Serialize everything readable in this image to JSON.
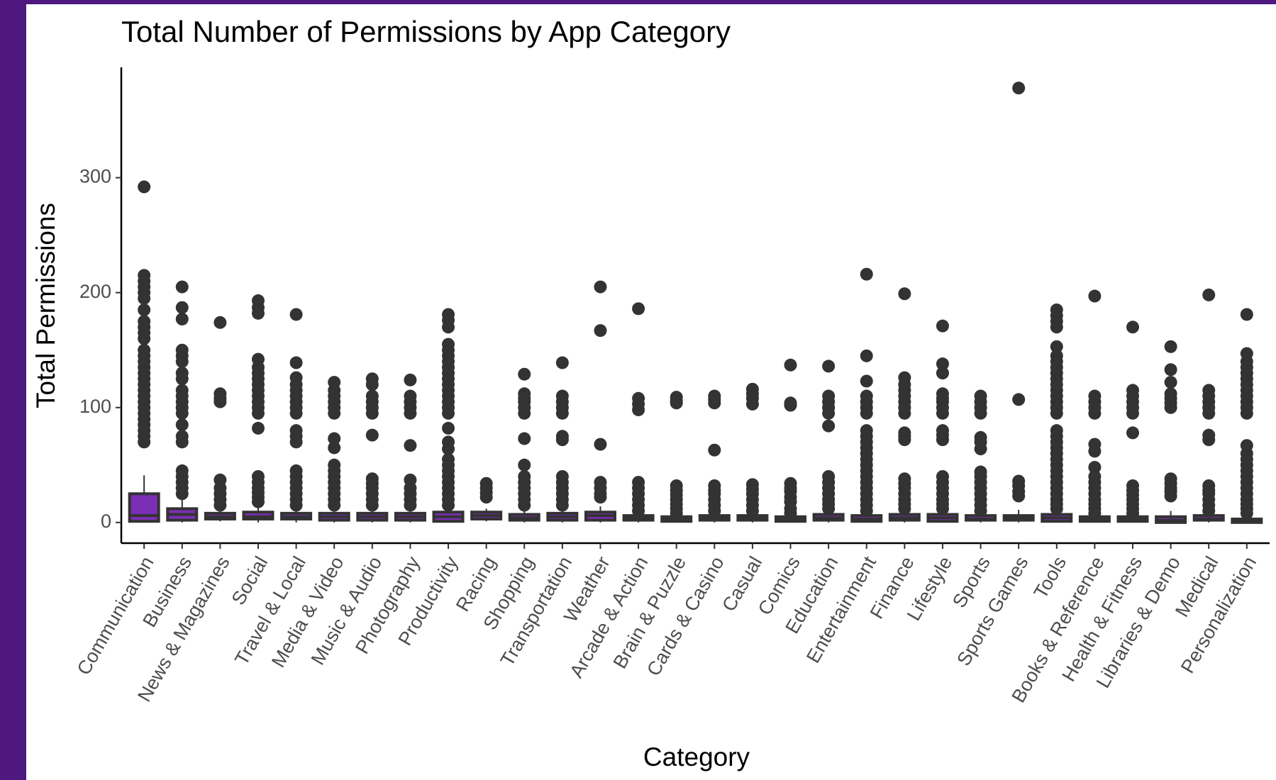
{
  "chart_data": {
    "type": "box",
    "title": "Total Number of Permissions by App Category",
    "x_label": "Category",
    "y_label": "Total Permissions",
    "categories": [
      "Communication",
      "Business",
      "News & Magazines",
      "Social",
      "Travel & Local",
      "Media & Video",
      "Music & Audio",
      "Photography",
      "Productivity",
      "Racing",
      "Shopping",
      "Transportation",
      "Weather",
      "Arcade & Action",
      "Brain & Puzzle",
      "Cards & Casino",
      "Casual",
      "Comics",
      "Education",
      "Entertainment",
      "Finance",
      "Lifestyle",
      "Sports",
      "Sports Games",
      "Tools",
      "Books & Reference",
      "Health & Fitness",
      "Libraries & Demo",
      "Medical",
      "Personalization"
    ],
    "whisker_low": [
      0,
      0,
      1,
      0,
      0,
      0,
      0,
      0,
      0,
      1,
      0,
      0,
      0,
      0,
      0,
      0,
      0,
      0,
      0,
      0,
      0,
      0,
      0,
      0,
      0,
      0,
      0,
      0,
      0,
      0
    ],
    "q1": [
      1,
      2,
      3,
      3,
      3,
      2,
      2,
      2,
      1,
      3,
      2,
      2,
      2,
      2,
      1,
      2,
      2,
      1,
      2,
      1,
      2,
      1,
      2,
      2,
      1,
      1,
      1,
      0,
      2,
      0
    ],
    "median": [
      6,
      7,
      5,
      5,
      5,
      5,
      5,
      5,
      5,
      6,
      4,
      5,
      6,
      4,
      3,
      4,
      4,
      3,
      4,
      3,
      4,
      4,
      3,
      4,
      4,
      3,
      3,
      2,
      3,
      1
    ],
    "q3": [
      25,
      12,
      8,
      9,
      8,
      8,
      8,
      8,
      9,
      9,
      7,
      8,
      9,
      6,
      5,
      6,
      6,
      5,
      7,
      6,
      7,
      7,
      6,
      6,
      7,
      5,
      5,
      5,
      6,
      3
    ],
    "whisker_high": [
      41,
      20,
      12,
      15,
      12,
      12,
      12,
      12,
      14,
      12,
      11,
      12,
      14,
      9,
      8,
      9,
      9,
      8,
      11,
      10,
      11,
      11,
      9,
      11,
      11,
      8,
      8,
      10,
      9,
      6
    ],
    "outliers": [
      [
        70,
        75,
        80,
        85,
        90,
        95,
        100,
        105,
        110,
        115,
        120,
        125,
        130,
        135,
        140,
        145,
        150,
        160,
        165,
        170,
        175,
        185,
        195,
        200,
        205,
        210,
        215,
        292
      ],
      [
        25,
        30,
        35,
        40,
        45,
        70,
        75,
        85,
        95,
        100,
        105,
        110,
        115,
        125,
        130,
        140,
        145,
        150,
        177,
        187,
        205
      ],
      [
        15,
        20,
        25,
        30,
        37,
        105,
        108,
        112,
        174
      ],
      [
        18,
        22,
        26,
        30,
        35,
        40,
        82,
        95,
        100,
        105,
        110,
        115,
        120,
        125,
        130,
        135,
        142,
        182,
        187,
        193
      ],
      [
        15,
        20,
        25,
        30,
        35,
        40,
        45,
        70,
        75,
        80,
        95,
        100,
        105,
        110,
        115,
        120,
        126,
        139,
        181
      ],
      [
        15,
        20,
        25,
        30,
        35,
        40,
        45,
        50,
        65,
        73,
        95,
        100,
        105,
        110,
        115,
        122
      ],
      [
        15,
        20,
        25,
        30,
        34,
        38,
        76,
        95,
        100,
        105,
        110,
        120,
        125
      ],
      [
        15,
        20,
        25,
        30,
        37,
        67,
        95,
        100,
        105,
        110,
        124
      ],
      [
        15,
        20,
        25,
        30,
        35,
        40,
        45,
        50,
        55,
        64,
        70,
        82,
        95,
        100,
        105,
        110,
        115,
        120,
        125,
        130,
        135,
        140,
        145,
        150,
        155,
        170,
        176,
        181
      ],
      [
        22,
        26,
        30,
        34
      ],
      [
        15,
        20,
        25,
        30,
        35,
        40,
        50,
        73,
        95,
        100,
        105,
        108,
        112,
        129
      ],
      [
        15,
        20,
        25,
        30,
        35,
        40,
        72,
        75,
        95,
        100,
        105,
        110,
        139
      ],
      [
        22,
        25,
        30,
        35,
        68,
        167,
        205
      ],
      [
        10,
        15,
        20,
        25,
        30,
        35,
        98,
        103,
        108,
        186
      ],
      [
        8,
        12,
        16,
        20,
        24,
        28,
        32,
        104,
        106,
        109
      ],
      [
        10,
        15,
        20,
        25,
        28,
        32,
        63,
        104,
        107,
        110
      ],
      [
        10,
        15,
        20,
        25,
        29,
        33,
        103,
        108,
        112,
        116
      ],
      [
        8,
        12,
        18,
        22,
        27,
        30,
        34,
        102,
        104,
        137
      ],
      [
        12,
        16,
        20,
        25,
        30,
        35,
        40,
        84,
        95,
        100,
        105,
        110,
        136
      ],
      [
        10,
        15,
        20,
        25,
        30,
        35,
        40,
        45,
        50,
        55,
        60,
        65,
        70,
        75,
        80,
        95,
        100,
        105,
        110,
        123,
        145,
        216
      ],
      [
        12,
        16,
        20,
        25,
        30,
        34,
        38,
        72,
        75,
        78,
        95,
        100,
        105,
        110,
        115,
        120,
        126,
        199
      ],
      [
        12,
        16,
        20,
        25,
        30,
        35,
        40,
        72,
        76,
        80,
        95,
        100,
        105,
        108,
        112,
        130,
        138,
        171
      ],
      [
        10,
        15,
        20,
        25,
        30,
        35,
        40,
        44,
        64,
        70,
        74,
        95,
        100,
        105,
        110
      ],
      [
        23,
        27,
        32,
        36,
        107,
        378
      ],
      [
        12,
        16,
        20,
        25,
        30,
        35,
        40,
        45,
        50,
        55,
        60,
        65,
        70,
        75,
        80,
        95,
        100,
        105,
        110,
        115,
        120,
        125,
        130,
        135,
        140,
        145,
        153,
        170,
        175,
        180,
        185
      ],
      [
        8,
        12,
        16,
        20,
        25,
        30,
        35,
        40,
        48,
        62,
        68,
        95,
        100,
        105,
        110,
        197
      ],
      [
        8,
        12,
        16,
        20,
        24,
        28,
        32,
        78,
        95,
        100,
        105,
        110,
        115,
        170
      ],
      [
        23,
        27,
        30,
        34,
        38,
        100,
        104,
        108,
        112,
        122,
        133,
        153
      ],
      [
        10,
        15,
        20,
        25,
        28,
        32,
        72,
        76,
        95,
        100,
        105,
        110,
        115,
        198
      ],
      [
        8,
        12,
        16,
        20,
        25,
        30,
        35,
        40,
        45,
        50,
        55,
        60,
        67,
        95,
        100,
        105,
        110,
        115,
        120,
        125,
        130,
        135,
        140,
        147,
        181
      ]
    ],
    "box_color": "#7b2fb5",
    "line_color": "#333333",
    "ylim": [
      -18,
      396
    ],
    "yticks": [
      0,
      100,
      200,
      300
    ]
  }
}
